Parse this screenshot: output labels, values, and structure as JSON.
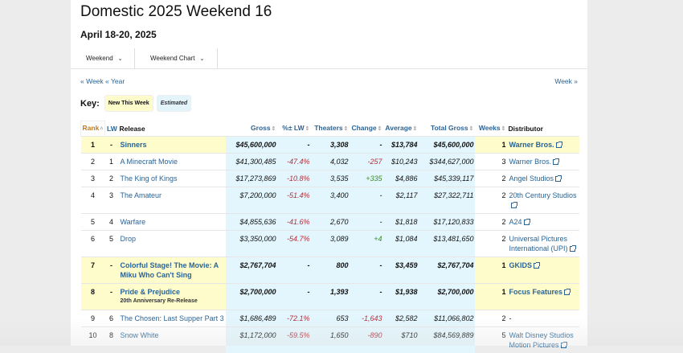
{
  "title": "Domestic 2025 Weekend 16",
  "date_range": "April 18-20, 2025",
  "nav": [
    {
      "label": "Weekend"
    },
    {
      "label": "Weekend Chart"
    }
  ],
  "prev_week": "« Week",
  "prev_year": "« Year",
  "next_week": "Week »",
  "key": {
    "label": "Key:",
    "new": "New This Week",
    "estimated": "Estimated"
  },
  "columns": {
    "rank": "Rank",
    "lw": "LW",
    "release": "Release",
    "gross": "Gross",
    "pct": "%± LW",
    "theaters": "Theaters",
    "change": "Change",
    "average": "Average",
    "total": "Total Gross",
    "weeks": "Weeks",
    "distributor": "Distributor"
  },
  "colors": {
    "link": "#2a6496",
    "rank_header": "#c27a1f",
    "estimated_shade": "#e3f6fd",
    "new_key": "#fefccb",
    "negative": "#b0303a",
    "positive": "#3a8a2a"
  },
  "rows": [
    {
      "rank": "1",
      "lw": "-",
      "release": "Sinners",
      "sub": "",
      "gross": "$45,600,000",
      "pct": "-",
      "theaters": "3,308",
      "change": "-",
      "average": "$13,784",
      "total": "$45,600,000",
      "weeks": "1",
      "distributor": "Warner Bros.",
      "new": true
    },
    {
      "rank": "2",
      "lw": "1",
      "release": "A Minecraft Movie",
      "sub": "",
      "gross": "$41,300,485",
      "pct": "-47.4%",
      "theaters": "4,032",
      "change": "-257",
      "average": "$10,243",
      "total": "$344,627,000",
      "weeks": "3",
      "distributor": "Warner Bros.",
      "new": false
    },
    {
      "rank": "3",
      "lw": "2",
      "release": "The King of Kings",
      "sub": "",
      "gross": "$17,273,869",
      "pct": "-10.8%",
      "theaters": "3,535",
      "change": "+335",
      "average": "$4,886",
      "total": "$45,339,117",
      "weeks": "2",
      "distributor": "Angel Studios",
      "new": false
    },
    {
      "rank": "4",
      "lw": "3",
      "release": "The Amateur",
      "sub": "",
      "gross": "$7,200,000",
      "pct": "-51.4%",
      "theaters": "3,400",
      "change": "-",
      "average": "$2,117",
      "total": "$27,322,711",
      "weeks": "2",
      "distributor": "20th Century Studios",
      "new": false
    },
    {
      "rank": "5",
      "lw": "4",
      "release": "Warfare",
      "sub": "",
      "gross": "$4,855,636",
      "pct": "-41.6%",
      "theaters": "2,670",
      "change": "-",
      "average": "$1,818",
      "total": "$17,120,833",
      "weeks": "2",
      "distributor": "A24",
      "new": false
    },
    {
      "rank": "6",
      "lw": "5",
      "release": "Drop",
      "sub": "",
      "gross": "$3,350,000",
      "pct": "-54.7%",
      "theaters": "3,089",
      "change": "+4",
      "average": "$1,084",
      "total": "$13,481,650",
      "weeks": "2",
      "distributor": "Universal Pictures International (UPI)",
      "new": false
    },
    {
      "rank": "7",
      "lw": "-",
      "release": "Colorful Stage! The Movie: A Miku Who Can't Sing",
      "sub": "",
      "gross": "$2,767,704",
      "pct": "-",
      "theaters": "800",
      "change": "-",
      "average": "$3,459",
      "total": "$2,767,704",
      "weeks": "1",
      "distributor": "GKIDS",
      "new": true
    },
    {
      "rank": "8",
      "lw": "-",
      "release": "Pride & Prejudice",
      "sub": "20th Anniversary Re-Release",
      "gross": "$2,700,000",
      "pct": "-",
      "theaters": "1,393",
      "change": "-",
      "average": "$1,938",
      "total": "$2,700,000",
      "weeks": "1",
      "distributor": "Focus Features",
      "new": true
    },
    {
      "rank": "9",
      "lw": "6",
      "release": "The Chosen: Last Supper Part 3",
      "sub": "",
      "gross": "$1,686,489",
      "pct": "-72.1%",
      "theaters": "653",
      "change": "-1,643",
      "average": "$2,582",
      "total": "$11,066,802",
      "weeks": "2",
      "distributor": "-",
      "new": false
    },
    {
      "rank": "10",
      "lw": "8",
      "release": "Snow White",
      "sub": "",
      "gross": "$1,172,000",
      "pct": "-59.5%",
      "theaters": "1,650",
      "change": "-890",
      "average": "$710",
      "total": "$84,569,889",
      "weeks": "5",
      "distributor": "Walt Disney Studios Motion Pictures",
      "new": false
    }
  ]
}
